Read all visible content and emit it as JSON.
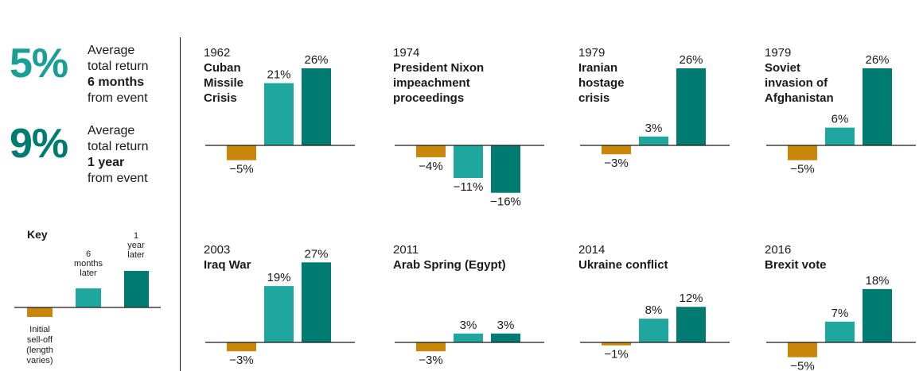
{
  "stats": [
    {
      "value": "5%",
      "line1": "Average",
      "line2": "total return",
      "line3": "6 months",
      "line4": "from event",
      "color": "#1a9e96"
    },
    {
      "value": "9%",
      "line1": "Average",
      "line2": "total return",
      "line3": "1 year",
      "line4": "from event",
      "color": "#007b71"
    }
  ],
  "key": {
    "title": "Key",
    "label_initial": [
      "Initial",
      "sell-off",
      "(length",
      "varies)"
    ],
    "label_6m": [
      "6",
      "months",
      "later"
    ],
    "label_1y": [
      "1",
      "year",
      "later"
    ]
  },
  "colors": {
    "initial": "#c8860a",
    "six_months": "#1fa69e",
    "one_year": "#007b71"
  },
  "chart_data": [
    {
      "type": "bar",
      "year": "1962",
      "event": "Cuban\nMissile\nCrisis",
      "labels": [
        "−5%",
        "21%",
        "26%"
      ],
      "values": [
        -5,
        21,
        26
      ]
    },
    {
      "type": "bar",
      "year": "1974",
      "event": "President Nixon\nimpeachment\nproceedings",
      "labels": [
        "−4%",
        "−11%",
        "−16%"
      ],
      "values": [
        -4,
        -11,
        -16
      ]
    },
    {
      "type": "bar",
      "year": "1979",
      "event": "Iranian\nhostage\ncrisis",
      "labels": [
        "−3%",
        "3%",
        "26%"
      ],
      "values": [
        -3,
        3,
        26
      ]
    },
    {
      "type": "bar",
      "year": "1979",
      "event": "Soviet\ninvasion of\nAfghanistan",
      "labels": [
        "−5%",
        "6%",
        "26%"
      ],
      "values": [
        -5,
        6,
        26
      ]
    },
    {
      "type": "bar",
      "year": "2003",
      "event": "Iraq War",
      "labels": [
        "−3%",
        "19%",
        "27%"
      ],
      "values": [
        -3,
        19,
        27
      ]
    },
    {
      "type": "bar",
      "year": "2011",
      "event": "Arab Spring (Egypt)",
      "labels": [
        "−3%",
        "3%",
        "3%"
      ],
      "values": [
        -3,
        3,
        3
      ]
    },
    {
      "type": "bar",
      "year": "2014",
      "event": "Ukraine conflict",
      "labels": [
        "−1%",
        "8%",
        "12%"
      ],
      "values": [
        -1,
        8,
        12
      ]
    },
    {
      "type": "bar",
      "year": "2016",
      "event": "Brexit vote",
      "labels": [
        "−5%",
        "7%",
        "18%"
      ],
      "values": [
        -5,
        7,
        18
      ]
    }
  ]
}
